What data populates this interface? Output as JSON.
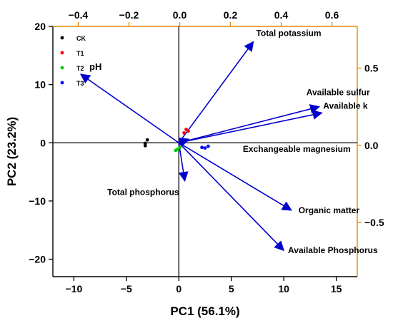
{
  "colors": {
    "ck": "#000000",
    "t1": "#ff0000",
    "t2": "#00cc00",
    "t3": "#0000ff",
    "arrow": "#0000cc",
    "secondary_axes": "#e08a00",
    "primary_axes": "#000000"
  },
  "chart_data": {
    "type": "scatter",
    "subtype": "pca-biplot",
    "xlabel": "PC1 (56.1%)",
    "ylabel": "PC2 (23.2%)",
    "xlim": [
      -12,
      17
    ],
    "ylim": [
      -23,
      20
    ],
    "x_ticks": [
      -10,
      -5,
      0,
      5,
      10,
      15
    ],
    "y_ticks": [
      -20,
      -10,
      0,
      10,
      20
    ],
    "top_axis": {
      "lim": [
        -0.5,
        0.7
      ],
      "ticks": [
        -0.4,
        -0.2,
        0.0,
        0.2,
        0.4,
        0.6
      ],
      "tick_labels": [
        "−0.4",
        "−0.2",
        "0.0",
        "0.2",
        "0.4",
        "0.6"
      ]
    },
    "right_axis": {
      "lim": [
        -0.85,
        0.77
      ],
      "ticks": [
        0.5,
        0.0,
        -0.5
      ],
      "tick_labels": [
        "0.5",
        "0.0",
        "−0.5"
      ]
    },
    "grid": false,
    "legend_position": "top-left",
    "series": [
      {
        "name": "CK",
        "color_key": "ck",
        "points": [
          [
            -3.2,
            -0.5
          ],
          [
            -3.0,
            0.5
          ],
          [
            -3.2,
            -0.1
          ]
        ]
      },
      {
        "name": "T1",
        "color_key": "t1",
        "points": [
          [
            0.7,
            2.3
          ],
          [
            0.9,
            2.0
          ],
          [
            0.5,
            1.7
          ]
        ]
      },
      {
        "name": "T2",
        "color_key": "t2",
        "points": [
          [
            -0.3,
            -1.3
          ],
          [
            0.1,
            -0.8
          ],
          [
            -0.1,
            -1.1
          ]
        ]
      },
      {
        "name": "T3",
        "color_key": "t3",
        "points": [
          [
            2.2,
            -0.8
          ],
          [
            2.8,
            -0.6
          ],
          [
            2.5,
            -0.9
          ]
        ]
      }
    ],
    "loadings": [
      {
        "name": "Total potassium",
        "x": 0.29,
        "y": 0.67
      },
      {
        "name": "pH",
        "x": -0.39,
        "y": 0.46
      },
      {
        "name": "Available sulfur",
        "x": 0.55,
        "y": 0.25
      },
      {
        "name": "Available k",
        "x": 0.56,
        "y": 0.21
      },
      {
        "name": "Exchangeable magnesium",
        "x": 0.035,
        "y": 0.04
      },
      {
        "name": "Total phosphorus",
        "x": 0.02,
        "y": -0.23
      },
      {
        "name": "Organic matter",
        "x": 0.44,
        "y": -0.42
      },
      {
        "name": "Available Phosphorus",
        "x": 0.41,
        "y": -0.68
      }
    ]
  }
}
